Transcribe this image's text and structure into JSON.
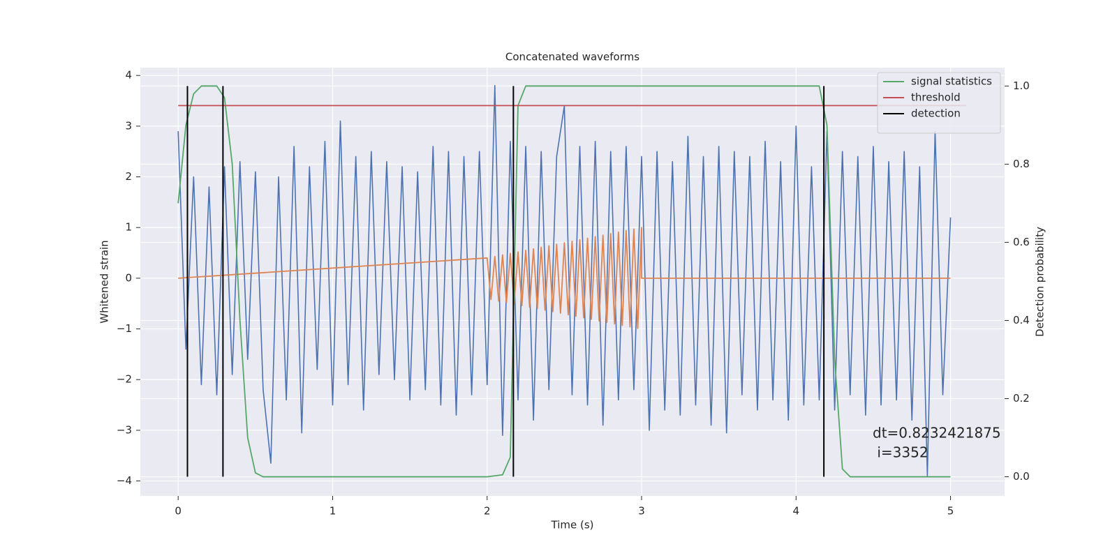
{
  "chart_data": {
    "type": "line",
    "title": "Concatenated waveforms",
    "xlabel": "Time (s)",
    "ylabel": "Whitened strain",
    "y2label": "Detection probability",
    "xlim": [
      -0.245,
      5.35
    ],
    "ylim": [
      -4.295,
      4.154
    ],
    "y2lim": [
      -0.049,
      1.047
    ],
    "xticks": [
      0,
      1,
      2,
      3,
      4,
      5
    ],
    "yticks": [
      {
        "value": -4,
        "label": "−4"
      },
      {
        "value": -3,
        "label": "−3"
      },
      {
        "value": -2,
        "label": "−2"
      },
      {
        "value": -1,
        "label": "−1"
      },
      0,
      1,
      2,
      3,
      4
    ],
    "y2ticks": [
      {
        "value": 0,
        "label": "0.0"
      },
      0.2,
      0.4,
      0.6,
      0.8,
      {
        "value": 1,
        "label": "1.0"
      }
    ],
    "grid": true,
    "legend_position": "upper-right",
    "series": [
      {
        "color": "#4c72b0",
        "x": [
          0,
          0.05,
          0.1,
          0.15,
          0.2,
          0.25,
          0.3,
          0.35,
          0.4,
          0.45,
          0.5,
          0.55,
          0.6,
          0.65,
          0.7,
          0.75,
          0.8,
          0.85,
          0.9,
          0.95,
          1,
          1.05,
          1.1,
          1.15,
          1.2,
          1.25,
          1.3,
          1.35,
          1.4,
          1.45,
          1.5,
          1.55,
          1.6,
          1.65,
          1.7,
          1.75,
          1.8,
          1.85,
          1.9,
          1.95,
          2,
          2.05,
          2.1,
          2.15,
          2.2,
          2.25,
          2.3,
          2.35,
          2.4,
          2.45,
          2.5,
          2.55,
          2.6,
          2.65,
          2.7,
          2.75,
          2.8,
          2.85,
          2.9,
          2.95,
          3,
          3.05,
          3.1,
          3.15,
          3.2,
          3.25,
          3.3,
          3.35,
          3.4,
          3.45,
          3.5,
          3.55,
          3.6,
          3.65,
          3.7,
          3.75,
          3.8,
          3.85,
          3.9,
          3.95,
          4,
          4.05,
          4.1,
          4.15,
          4.2,
          4.25,
          4.3,
          4.35,
          4.4,
          4.45,
          4.5,
          4.55,
          4.6,
          4.65,
          4.7,
          4.75,
          4.8,
          4.85,
          4.9,
          4.95,
          5
        ],
        "values": [
          2.9,
          -1.4,
          2.0,
          -2.1,
          1.8,
          -2.3,
          2.2,
          -1.9,
          2.3,
          -1.6,
          2.1,
          -2.2,
          -3.65,
          2.0,
          -2.4,
          2.6,
          -3.05,
          2.2,
          -1.8,
          2.7,
          -2.5,
          3.1,
          -2.1,
          2.4,
          -2.6,
          2.5,
          -1.9,
          2.3,
          -2.0,
          2.2,
          -2.4,
          2.1,
          -2.2,
          2.6,
          -2.5,
          2.5,
          -2.7,
          2.4,
          -2.3,
          2.5,
          -2.1,
          3.8,
          -3.1,
          2.7,
          -2.4,
          2.6,
          -2.8,
          2.5,
          -2.2,
          2.4,
          3.4,
          -2.3,
          2.6,
          -2.5,
          2.7,
          -2.9,
          2.5,
          -2.4,
          2.6,
          -2.2,
          2.4,
          -3.0,
          2.5,
          -2.6,
          2.3,
          -2.7,
          2.8,
          -2.5,
          2.4,
          -2.9,
          2.6,
          -3.05,
          2.5,
          -2.3,
          2.4,
          -2.6,
          2.7,
          -2.4,
          2.3,
          -2.8,
          3.0,
          -2.5,
          2.2,
          -2.4,
          2.9,
          -2.6,
          2.5,
          -2.3,
          2.4,
          -2.7,
          2.6,
          -2.5,
          2.3,
          -2.4,
          2.5,
          -2.8,
          2.2,
          -3.9,
          2.9,
          -2.3,
          1.2
        ]
      },
      {
        "color": "#dd8452",
        "x": [
          0,
          2.0,
          2.025,
          2.05,
          2.075,
          2.1,
          2.125,
          2.15,
          2.175,
          2.2,
          2.225,
          2.25,
          2.275,
          2.3,
          2.325,
          2.35,
          2.375,
          2.4,
          2.425,
          2.45,
          2.475,
          2.5,
          2.525,
          2.55,
          2.575,
          2.6,
          2.625,
          2.65,
          2.675,
          2.7,
          2.725,
          2.75,
          2.775,
          2.8,
          2.825,
          2.85,
          2.875,
          2.9,
          2.925,
          2.95,
          2.975,
          3.0,
          3.0,
          5
        ],
        "values": [
          0,
          0.4,
          -0.42,
          0.43,
          -0.45,
          0.46,
          -0.48,
          0.49,
          -0.51,
          0.52,
          -0.54,
          0.55,
          -0.57,
          0.58,
          -0.6,
          0.61,
          -0.63,
          0.64,
          -0.66,
          0.67,
          -0.69,
          0.7,
          -0.72,
          0.73,
          -0.75,
          0.76,
          -0.78,
          0.79,
          -0.81,
          0.82,
          -0.84,
          0.85,
          -0.87,
          0.88,
          -0.9,
          0.91,
          -0.93,
          0.94,
          -0.96,
          0.97,
          -0.99,
          1.0,
          0,
          0
        ]
      },
      {
        "name": "signal statistics",
        "color": "#55a868",
        "axis": "y2",
        "x": [
          0,
          0.05,
          0.1,
          0.15,
          0.25,
          0.3,
          0.35,
          0.4,
          0.45,
          0.5,
          0.55,
          2.0,
          2.1,
          2.15,
          2.2,
          2.25,
          4.15,
          4.2,
          4.25,
          4.3,
          4.35,
          5
        ],
        "values": [
          0.7,
          0.9,
          0.98,
          1.0,
          1.0,
          0.97,
          0.8,
          0.4,
          0.1,
          0.01,
          0,
          0,
          0.005,
          0.05,
          0.95,
          1.0,
          1.0,
          0.9,
          0.3,
          0.02,
          0,
          0
        ]
      },
      {
        "name": "threshold",
        "color": "#c44e52",
        "axis": "y2",
        "x": [
          0,
          5.1
        ],
        "values": [
          0.95,
          0.95
        ]
      }
    ],
    "detection": {
      "name": "detection",
      "color": "#000000",
      "x": [
        0.06,
        0.29,
        2.17,
        4.18
      ],
      "y2range": [
        0,
        1
      ]
    },
    "annotation": [
      "dt=0.8232421875",
      " i=3352"
    ]
  }
}
